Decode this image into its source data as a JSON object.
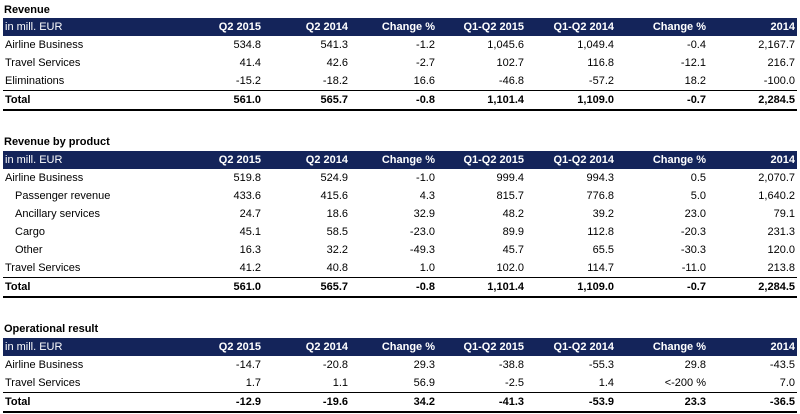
{
  "columns": [
    "in mill. EUR",
    "Q2 2015",
    "Q2 2014",
    "Change %",
    "Q1-Q2 2015",
    "Q1-Q2 2014",
    "Change %",
    "2014"
  ],
  "sections": [
    {
      "title": "Revenue",
      "rows": [
        {
          "label": "Airline Business",
          "indent": false,
          "total": false,
          "values": [
            "534.8",
            "541.3",
            "-1.2",
            "1,045.6",
            "1,049.4",
            "-0.4",
            "2,167.7"
          ]
        },
        {
          "label": "Travel Services",
          "indent": false,
          "total": false,
          "values": [
            "41.4",
            "42.6",
            "-2.7",
            "102.7",
            "116.8",
            "-12.1",
            "216.7"
          ]
        },
        {
          "label": "Eliminations",
          "indent": false,
          "total": false,
          "values": [
            "-15.2",
            "-18.2",
            "16.6",
            "-46.8",
            "-57.2",
            "18.2",
            "-100.0"
          ]
        },
        {
          "label": "Total",
          "indent": false,
          "total": true,
          "values": [
            "561.0",
            "565.7",
            "-0.8",
            "1,101.4",
            "1,109.0",
            "-0.7",
            "2,284.5"
          ]
        }
      ]
    },
    {
      "title": "Revenue by product",
      "rows": [
        {
          "label": "Airline Business",
          "indent": false,
          "total": false,
          "values": [
            "519.8",
            "524.9",
            "-1.0",
            "999.4",
            "994.3",
            "0.5",
            "2,070.7"
          ]
        },
        {
          "label": "Passenger revenue",
          "indent": true,
          "total": false,
          "values": [
            "433.6",
            "415.6",
            "4.3",
            "815.7",
            "776.8",
            "5.0",
            "1,640.2"
          ]
        },
        {
          "label": "Ancillary services",
          "indent": true,
          "total": false,
          "values": [
            "24.7",
            "18.6",
            "32.9",
            "48.2",
            "39.2",
            "23.0",
            "79.1"
          ]
        },
        {
          "label": "Cargo",
          "indent": true,
          "total": false,
          "values": [
            "45.1",
            "58.5",
            "-23.0",
            "89.9",
            "112.8",
            "-20.3",
            "231.3"
          ]
        },
        {
          "label": "Other",
          "indent": true,
          "total": false,
          "values": [
            "16.3",
            "32.2",
            "-49.3",
            "45.7",
            "65.5",
            "-30.3",
            "120.0"
          ]
        },
        {
          "label": "Travel Services",
          "indent": false,
          "total": false,
          "values": [
            "41.2",
            "40.8",
            "1.0",
            "102.0",
            "114.7",
            "-11.0",
            "213.8"
          ]
        },
        {
          "label": "Total",
          "indent": false,
          "total": true,
          "values": [
            "561.0",
            "565.7",
            "-0.8",
            "1,101.4",
            "1,109.0",
            "-0.7",
            "2,284.5"
          ]
        }
      ]
    },
    {
      "title": "Operational result",
      "rows": [
        {
          "label": "Airline Business",
          "indent": false,
          "total": false,
          "values": [
            "-14.7",
            "-20.8",
            "29.3",
            "-38.8",
            "-55.3",
            "29.8",
            "-43.5"
          ]
        },
        {
          "label": "Travel Services",
          "indent": false,
          "total": false,
          "values": [
            "1.7",
            "1.1",
            "56.9",
            "-2.5",
            "1.4",
            "<-200 %",
            "7.0"
          ]
        },
        {
          "label": "Total",
          "indent": false,
          "total": true,
          "values": [
            "-12.9",
            "-19.6",
            "34.2",
            "-41.3",
            "-53.9",
            "23.3",
            "-36.5"
          ]
        }
      ]
    }
  ]
}
